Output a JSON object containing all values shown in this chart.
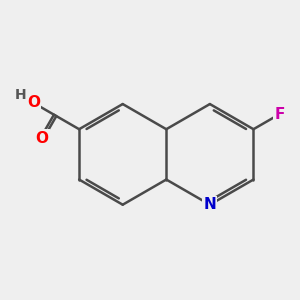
{
  "bg_color": "#efefef",
  "bond_color": "#4a4a4a",
  "bond_width": 1.8,
  "atom_colors": {
    "O": "#ff0000",
    "N": "#0000cc",
    "F": "#cc00aa",
    "H": "#555555",
    "C": "#4a4a4a"
  },
  "font_size": 11,
  "label_font_size": 10
}
